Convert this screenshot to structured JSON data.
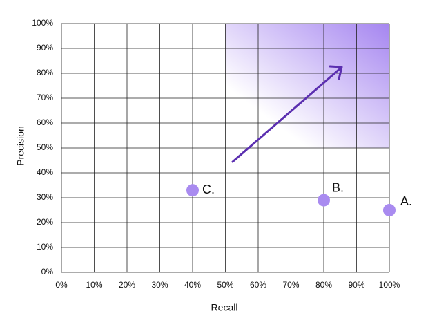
{
  "chart_data": {
    "type": "scatter",
    "x_label": "Recall",
    "y_label": "Precision",
    "series": [
      {
        "color": "#a98bf0",
        "x": [
          40,
          80,
          100
        ],
        "values": [
          33,
          29,
          25
        ],
        "labels": [
          "C.",
          "B.",
          "A."
        ]
      }
    ],
    "xlim": [
      0,
      100
    ],
    "ylim": [
      0,
      100
    ],
    "xticks": [
      {
        "value": 0,
        "label": "0%"
      },
      {
        "value": 10,
        "label": "10%"
      },
      {
        "value": 20,
        "label": "20%"
      },
      {
        "value": 30,
        "label": "30%"
      },
      {
        "value": 40,
        "label": "40%"
      },
      {
        "value": 50,
        "label": "50%"
      },
      {
        "value": 60,
        "label": "60%"
      },
      {
        "value": 70,
        "label": "70%"
      },
      {
        "value": 80,
        "label": "80%"
      },
      {
        "value": 90,
        "label": "90%"
      },
      {
        "value": 100,
        "label": "100%"
      }
    ],
    "yticks": [
      {
        "value": 0,
        "label": "0%"
      },
      {
        "value": 10,
        "label": "10%"
      },
      {
        "value": 20,
        "label": "20%"
      },
      {
        "value": 30,
        "label": "30%"
      },
      {
        "value": 40,
        "label": "40%"
      },
      {
        "value": 50,
        "label": "50%"
      },
      {
        "value": 60,
        "label": "60%"
      },
      {
        "value": 70,
        "label": "70%"
      },
      {
        "value": 80,
        "label": "80%"
      },
      {
        "value": 90,
        "label": "90%"
      },
      {
        "value": 100,
        "label": "100%"
      }
    ],
    "grid": true
  }
}
